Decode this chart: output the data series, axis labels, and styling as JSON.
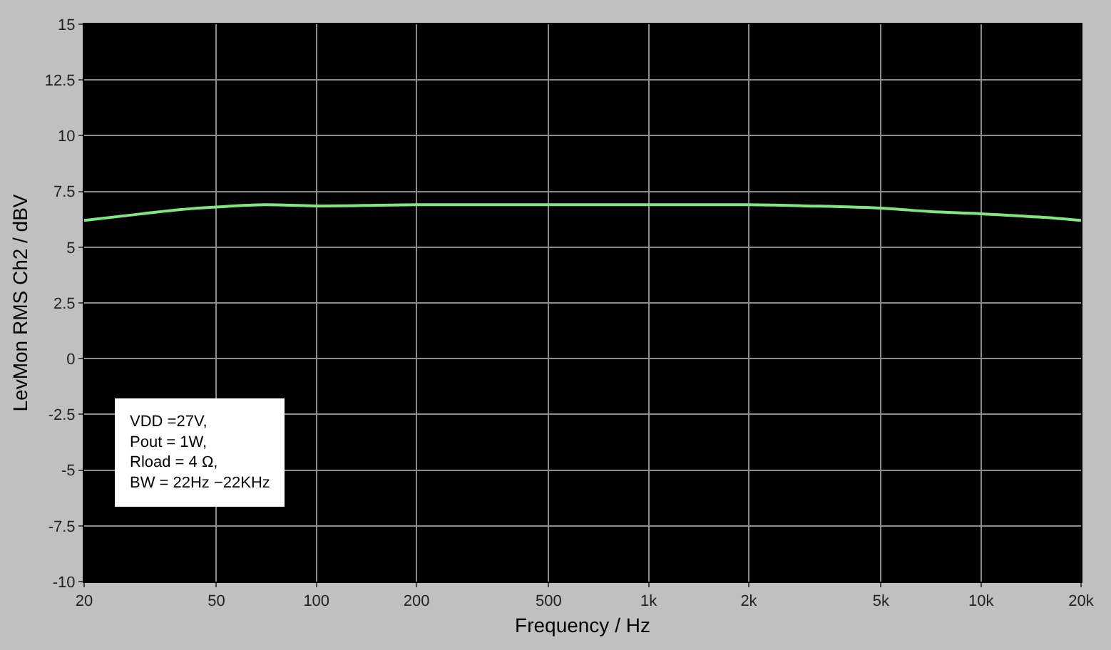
{
  "chart_data": {
    "type": "line",
    "xlabel": "Frequency / Hz",
    "ylabel": "LevMon RMS Ch2 / dBV",
    "log": "x",
    "grid": true,
    "legend": false,
    "marker": "none",
    "line_style": "solid",
    "xlim": [
      20,
      20000
    ],
    "xticks": [
      20,
      50,
      100,
      200,
      500,
      {
        "value": 1000,
        "label": "1k"
      },
      {
        "value": 2000,
        "label": "2k"
      },
      {
        "value": 5000,
        "label": "5k"
      },
      {
        "value": 10000,
        "label": "10k"
      },
      {
        "value": 20000,
        "label": "20k"
      }
    ],
    "ylim": [
      -10,
      15
    ],
    "yticks": [
      -10,
      -7.5,
      -5,
      -2.5,
      0,
      2.5,
      5,
      7.5,
      10,
      12.5,
      15
    ],
    "x": [
      20,
      30,
      40,
      50,
      70,
      100,
      200,
      500,
      1000,
      2000,
      3000,
      5000,
      7000,
      10000,
      15000,
      20000
    ],
    "series": [
      {
        "color": "#80e680",
        "values": [
          6.2,
          6.5,
          6.7,
          6.8,
          6.9,
          6.85,
          6.9,
          6.9,
          6.9,
          6.9,
          6.85,
          6.75,
          6.6,
          6.5,
          6.35,
          6.2
        ]
      }
    ],
    "annotations": [
      "VDD =27V,\nPout = 1W,\nRload = 4 Ω,\nBW = 22Hz −22KHz"
    ]
  }
}
